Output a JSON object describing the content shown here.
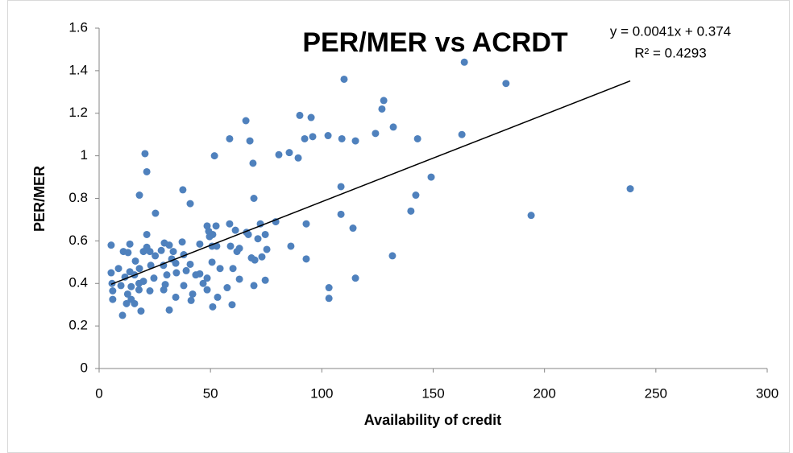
{
  "chart_data": {
    "type": "scatter",
    "title": "PER/MER vs ACRDT",
    "x_label": "Availability of credit",
    "y_label": "PER/MER",
    "trendline_equation": "y = 0.0041x + 0.374",
    "r_squared_label": "R² = 0.4293",
    "trendline": {
      "slope": 0.0041,
      "intercept": 0.374
    },
    "color": "#4f81bd",
    "xlim": [
      0,
      300
    ],
    "xticks": [
      0,
      50,
      100,
      150,
      200,
      250,
      300
    ],
    "ylim": [
      0,
      1.6
    ],
    "yticks": [
      0,
      0.2,
      0.4,
      0.6,
      0.8,
      1,
      1.2,
      1.4,
      1.6
    ],
    "grid": false,
    "x": [
      164,
      182.7,
      110,
      127.8,
      127,
      90.1,
      95.2,
      65.9,
      132.1,
      124.1,
      162.9,
      58.6,
      67.7,
      92.3,
      95.9,
      102.8,
      109,
      115.1,
      143,
      20.6,
      51.8,
      80.7,
      85.4,
      89.4,
      69.1,
      21.4,
      149.1,
      108.6,
      37.6,
      238.5,
      18.1,
      69.5,
      142.2,
      40.9,
      25.3,
      140,
      108.6,
      194,
      58.6,
      79.3,
      93,
      72.4,
      48.5,
      52.5,
      49.2,
      61.2,
      66.2,
      67,
      74.6,
      114,
      21.4,
      49.6,
      51,
      5.4,
      13.8,
      27.9,
      29.3,
      31.5,
      37.3,
      33.3,
      45.2,
      59,
      71.3,
      75.3,
      86.1,
      52.8,
      21.4,
      19.9,
      10.9,
      13,
      22.8,
      25.2,
      32.6,
      38,
      50.7,
      61.9,
      63,
      68.4,
      69.9,
      73.1,
      93,
      131.7,
      16.3,
      5.4,
      8.7,
      13.8,
      18.1,
      23.2,
      28.9,
      34.4,
      40.9,
      45.2,
      50.7,
      54.3,
      60.1,
      11.6,
      15.9,
      19.9,
      24.6,
      30.4,
      34.7,
      39.1,
      43.4,
      48.5,
      63,
      74.6,
      115.1,
      5.8,
      9.8,
      14.4,
      17.9,
      29.7,
      38,
      46.7,
      57.5,
      69.5,
      6.1,
      12.8,
      17.9,
      22.8,
      29,
      42,
      48.5,
      103.2,
      6.1,
      14.4,
      15.9,
      34.4,
      53.2,
      41.3,
      103.2,
      12.3,
      18.8,
      31.5,
      51,
      59.7,
      10.5
    ],
    "y": [
      1.44,
      1.34,
      1.36,
      1.26,
      1.22,
      1.19,
      1.18,
      1.165,
      1.135,
      1.105,
      1.1,
      1.08,
      1.07,
      1.08,
      1.09,
      1.095,
      1.08,
      1.07,
      1.08,
      1.01,
      1,
      1.005,
      1.015,
      0.99,
      0.965,
      0.925,
      0.9,
      0.855,
      0.84,
      0.845,
      0.815,
      0.8,
      0.815,
      0.775,
      0.73,
      0.74,
      0.725,
      0.72,
      0.68,
      0.69,
      0.68,
      0.68,
      0.67,
      0.67,
      0.645,
      0.65,
      0.64,
      0.63,
      0.63,
      0.66,
      0.63,
      0.62,
      0.63,
      0.58,
      0.585,
      0.555,
      0.59,
      0.58,
      0.595,
      0.55,
      0.585,
      0.575,
      0.61,
      0.56,
      0.575,
      0.575,
      0.57,
      0.55,
      0.55,
      0.545,
      0.55,
      0.53,
      0.515,
      0.535,
      0.575,
      0.55,
      0.565,
      0.52,
      0.51,
      0.525,
      0.515,
      0.53,
      0.505,
      0.45,
      0.47,
      0.455,
      0.47,
      0.485,
      0.485,
      0.495,
      0.49,
      0.445,
      0.5,
      0.47,
      0.47,
      0.43,
      0.44,
      0.41,
      0.425,
      0.44,
      0.45,
      0.46,
      0.44,
      0.425,
      0.42,
      0.415,
      0.425,
      0.4,
      0.39,
      0.385,
      0.4,
      0.395,
      0.39,
      0.4,
      0.38,
      0.39,
      0.365,
      0.35,
      0.37,
      0.365,
      0.37,
      0.35,
      0.37,
      0.38,
      0.325,
      0.325,
      0.305,
      0.335,
      0.335,
      0.32,
      0.33,
      0.305,
      0.27,
      0.275,
      0.29,
      0.3,
      0.25
    ]
  }
}
